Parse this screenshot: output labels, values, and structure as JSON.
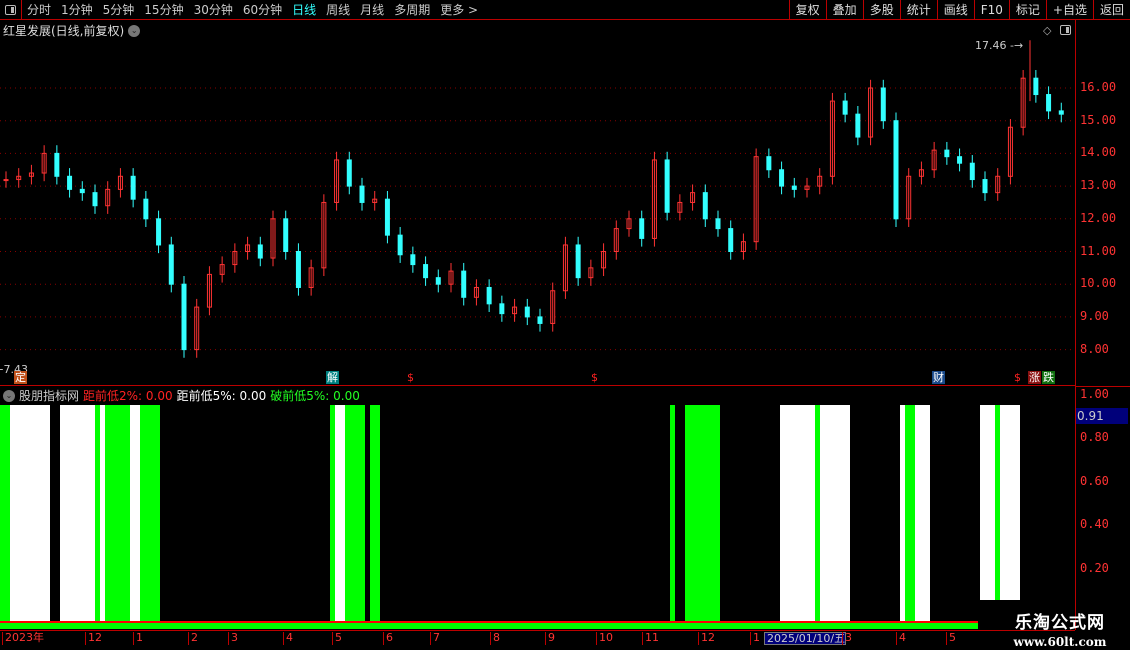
{
  "toolbar": {
    "periods": [
      "分时",
      "1分钟",
      "5分钟",
      "15分钟",
      "30分钟",
      "60分钟",
      "日线",
      "周线",
      "月线",
      "多周期",
      "更多 >"
    ],
    "active": "日线",
    "right_buttons": [
      "复权",
      "叠加",
      "多股",
      "统计",
      "画线",
      "F10",
      "标记",
      "+自选",
      "返回"
    ]
  },
  "main": {
    "title": "红星发展(日线,前复权)",
    "high_label": "17.46",
    "low_label": "7.43",
    "y_ticks": [
      "16.00",
      "15.00",
      "14.00",
      "13.00",
      "12.00",
      "11.00",
      "10.00",
      "9.00",
      "8.00"
    ],
    "markers": [
      {
        "t": "定",
        "c": "#c0501a"
      },
      {
        "t": "解",
        "c": "#008080"
      },
      {
        "t": "$",
        "c": "#000"
      },
      {
        "t": "$",
        "c": "#000"
      },
      {
        "t": "财",
        "c": "#1a4a8a"
      },
      {
        "t": "$",
        "c": "#000"
      },
      {
        "t": "涨",
        "c": "#8a1010"
      },
      {
        "t": "跌",
        "c": "#107010"
      }
    ]
  },
  "colors": {
    "up": "#ff3333",
    "down": "#33ffff",
    "signal_a": "#ffffff",
    "signal_b": "#00ff00",
    "axis": "#bb0000"
  },
  "chart_data": {
    "type": "candlestick",
    "ylim": [
      7.2,
      17.6
    ],
    "closes": [
      13.2,
      13.3,
      13.4,
      14.0,
      13.3,
      12.9,
      12.8,
      12.4,
      12.9,
      13.3,
      12.6,
      12.0,
      11.2,
      10.0,
      8.0,
      9.3,
      10.3,
      10.6,
      11.0,
      11.2,
      10.8,
      12.0,
      11.0,
      9.9,
      10.5,
      12.5,
      13.8,
      13.0,
      12.5,
      12.6,
      11.5,
      10.9,
      10.6,
      10.2,
      10.0,
      10.4,
      9.6,
      9.9,
      9.4,
      9.1,
      9.3,
      9.0,
      8.8,
      9.8,
      11.2,
      10.2,
      10.5,
      11.0,
      11.7,
      12.0,
      11.4,
      13.8,
      12.2,
      12.5,
      12.8,
      12.0,
      11.7,
      11.0,
      11.3,
      13.9,
      13.5,
      13.0,
      12.9,
      13.0,
      13.3,
      15.6,
      15.2,
      14.5,
      16.0,
      15.0,
      12.0,
      13.3,
      13.5,
      14.1,
      13.9,
      13.7,
      13.2,
      12.8,
      13.3,
      14.8,
      16.3,
      15.8,
      15.3,
      15.2
    ],
    "high": 17.46,
    "low": 7.43
  },
  "indicator": {
    "name": "股朋指标网",
    "lines": [
      {
        "label": "距前低2%: 0.00",
        "color": "#ff2222"
      },
      {
        "label": "距前低5%: 0.00",
        "color": "#ffffff"
      },
      {
        "label": "破前低5%: 0.00",
        "color": "#22ff22"
      }
    ],
    "y_ticks": [
      "1.00",
      "0.80",
      "0.60",
      "0.40",
      "0.20"
    ],
    "current": "0.91",
    "signal_runs": [
      [
        "g",
        2
      ],
      [
        "w",
        8
      ],
      [
        "n",
        2
      ],
      [
        "w",
        7
      ],
      [
        "g",
        1
      ],
      [
        "w",
        1
      ],
      [
        "g",
        5
      ],
      [
        "w",
        2
      ],
      [
        "g",
        4
      ],
      [
        "n",
        34
      ],
      [
        "g",
        1
      ],
      [
        "w",
        2
      ],
      [
        "g",
        4
      ],
      [
        "n",
        1
      ],
      [
        "g",
        2
      ],
      [
        "n",
        58
      ],
      [
        "g",
        1
      ],
      [
        "n",
        2
      ],
      [
        "g",
        7
      ],
      [
        "n",
        12
      ],
      [
        "w",
        7
      ],
      [
        "g",
        1
      ],
      [
        "w",
        6
      ],
      [
        "n",
        10
      ],
      [
        "w",
        1
      ],
      [
        "g",
        2
      ],
      [
        "w",
        3
      ],
      [
        "n",
        10
      ],
      [
        "w",
        3
      ],
      [
        "g",
        1
      ],
      [
        "w",
        4
      ],
      [
        "n",
        10
      ]
    ]
  },
  "x_axis": [
    "2023年",
    "12",
    "1",
    "2",
    "3",
    "4",
    "5",
    "6",
    "7",
    "8",
    "9",
    "10",
    "11",
    "12",
    "1",
    "2025/01/10/五",
    "3",
    "4",
    "5"
  ],
  "watermark": {
    "name": "乐淘公式网",
    "url": "www.60lt.com"
  }
}
